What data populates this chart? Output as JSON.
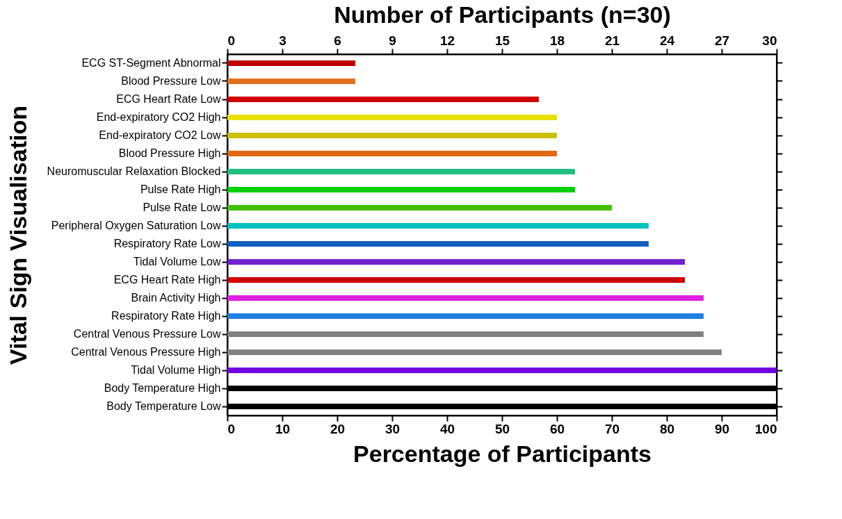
{
  "chart_data": {
    "type": "bar",
    "orientation": "horizontal",
    "xlabel": "Percentage of Participants",
    "ylabel": "Vital Sign Visualisation",
    "x2label": "Number of Participants (n=30)",
    "categories": [
      "ECG ST-Segment Abnormal",
      "Blood Pressure Low",
      "ECG Heart Rate Low",
      "End-expiratory CO2 High",
      "End-expiratory CO2 Low",
      "Blood Pressure High",
      "Neuromuscular Relaxation Blocked",
      "Pulse Rate High",
      "Pulse Rate Low",
      "Peripheral Oxygen Saturation Low",
      "Respiratory Rate Low",
      "Tidal Volume Low",
      "ECG Heart Rate High",
      "Brain Activity High",
      "Respiratory Rate High",
      "Central Venous Pressure Low",
      "Central Venous Pressure High",
      "Tidal Volume High",
      "Body Temperature High",
      "Body Temperature Low"
    ],
    "values": [
      23.3,
      23.3,
      56.7,
      60,
      60,
      60,
      63.3,
      63.3,
      70,
      76.7,
      76.7,
      83.3,
      83.3,
      86.7,
      86.7,
      86.7,
      90,
      100,
      100,
      100
    ],
    "colors": [
      "#c00000",
      "#e07020",
      "#d00000",
      "#e8e000",
      "#c8c000",
      "#e06810",
      "#20c080",
      "#00d000",
      "#40c000",
      "#00c0c0",
      "#1060c0",
      "#7020d0",
      "#d00000",
      "#e020e0",
      "#2080e0",
      "#808080",
      "#808080",
      "#7000e0",
      "#000000",
      "#000000"
    ],
    "xlim": [
      0,
      100
    ],
    "xticks": [
      0,
      10,
      20,
      30,
      40,
      50,
      60,
      70,
      80,
      90,
      100
    ],
    "x2lim": [
      0,
      30
    ],
    "x2ticks": [
      0,
      3,
      6,
      9,
      12,
      15,
      18,
      21,
      24,
      27,
      30
    ],
    "grid": false,
    "legend": false
  }
}
